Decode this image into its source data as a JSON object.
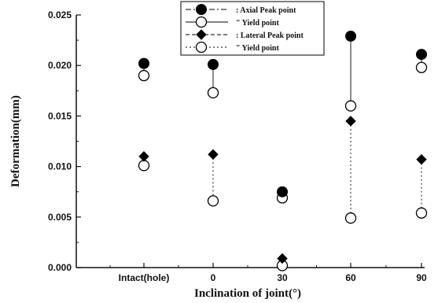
{
  "chart_data": {
    "type": "scatter",
    "xlabel": "Inclination of joint(°)",
    "ylabel": "Deformation(mm)",
    "categories": [
      "Intact(hole)",
      "0",
      "30",
      "60",
      "90"
    ],
    "ylim": [
      0,
      0.025
    ],
    "yticks": [
      "0.000",
      "0.005",
      "0.010",
      "0.015",
      "0.020",
      "0.025"
    ],
    "legend_position": "top",
    "series": [
      {
        "name": ": Axial Peak point",
        "marker": "filled-circle",
        "line": "dash-dot",
        "values": [
          0.0202,
          0.0201,
          0.0075,
          0.0229,
          0.0211
        ]
      },
      {
        "name": "\"    Yield point",
        "marker": "open-circle",
        "line": "solid",
        "values": [
          0.019,
          0.0173,
          0.0069,
          0.016,
          0.0198
        ]
      },
      {
        "name": ": Lateral Peak point",
        "marker": "filled-diamond",
        "line": "dashed",
        "values": [
          0.011,
          0.0112,
          0.0009,
          0.0145,
          0.0107
        ]
      },
      {
        "name": "\"    Yield point",
        "marker": "open-circle",
        "line": "dotted",
        "values": [
          0.0101,
          0.0066,
          0.0002,
          0.0049,
          0.0054
        ]
      }
    ]
  }
}
